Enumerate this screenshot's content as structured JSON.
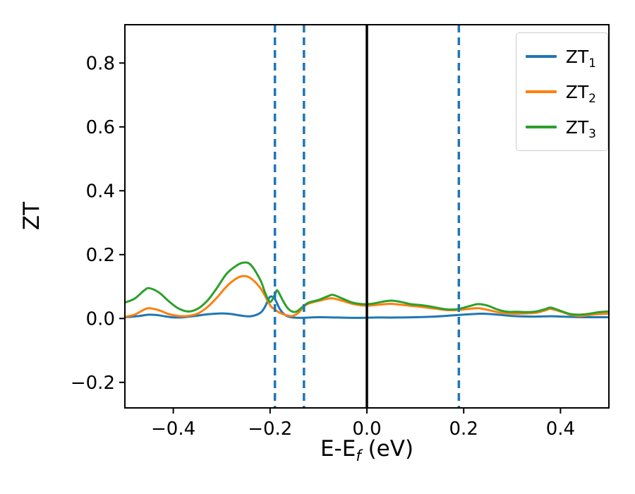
{
  "chart_data": {
    "type": "line",
    "title": "",
    "xlabel": "E-E_f (eV)",
    "xlabel_parts": {
      "main": "E-E",
      "sub": "f",
      "suffix": " (eV)"
    },
    "ylabel": "ZT",
    "xlim": [
      -0.5,
      0.5
    ],
    "ylim": [
      -0.28,
      0.92
    ],
    "grid": false,
    "legend_position": "upper right",
    "x_ticks": [
      {
        "value": -0.4,
        "label": "−0.4"
      },
      {
        "value": -0.2,
        "label": "−0.2"
      },
      {
        "value": 0.0,
        "label": "0.0"
      },
      {
        "value": 0.2,
        "label": "0.2"
      },
      {
        "value": 0.4,
        "label": "0.4"
      }
    ],
    "y_ticks": [
      {
        "value": -0.2,
        "label": "−0.2"
      },
      {
        "value": 0.0,
        "label": "0.0"
      },
      {
        "value": 0.2,
        "label": "0.2"
      },
      {
        "value": 0.4,
        "label": "0.4"
      },
      {
        "value": 0.6,
        "label": "0.6"
      },
      {
        "value": 0.8,
        "label": "0.8"
      }
    ],
    "vlines": [
      {
        "x": 0.0,
        "color": "#000000",
        "style": "solid",
        "width": 3.5
      },
      {
        "x": -0.19,
        "color": "#1f77b4",
        "style": "dashed",
        "width": 3.5
      },
      {
        "x": -0.13,
        "color": "#1f77b4",
        "style": "dashed",
        "width": 3.5
      },
      {
        "x": 0.19,
        "color": "#1f77b4",
        "style": "dashed",
        "width": 3.5
      }
    ],
    "series": [
      {
        "name": "ZT_1",
        "label_base": "ZT",
        "label_sub": "1",
        "color": "#1f77b4",
        "points": [
          [
            -0.5,
            0.004
          ],
          [
            -0.47,
            0.008
          ],
          [
            -0.45,
            0.012
          ],
          [
            -0.43,
            0.01
          ],
          [
            -0.41,
            0.005
          ],
          [
            -0.39,
            0.003
          ],
          [
            -0.36,
            0.007
          ],
          [
            -0.33,
            0.013
          ],
          [
            -0.3,
            0.016
          ],
          [
            -0.28,
            0.014
          ],
          [
            -0.26,
            0.009
          ],
          [
            -0.24,
            0.007
          ],
          [
            -0.22,
            0.018
          ],
          [
            -0.21,
            0.038
          ],
          [
            -0.2,
            0.068
          ],
          [
            -0.19,
            0.06
          ],
          [
            -0.18,
            0.03
          ],
          [
            -0.17,
            0.012
          ],
          [
            -0.16,
            0.005
          ],
          [
            -0.14,
            0.002
          ],
          [
            -0.1,
            0.004
          ],
          [
            -0.06,
            0.003
          ],
          [
            -0.02,
            0.002
          ],
          [
            0.02,
            0.003
          ],
          [
            0.06,
            0.003
          ],
          [
            0.1,
            0.004
          ],
          [
            0.14,
            0.006
          ],
          [
            0.18,
            0.01
          ],
          [
            0.21,
            0.013
          ],
          [
            0.24,
            0.015
          ],
          [
            0.27,
            0.012
          ],
          [
            0.3,
            0.008
          ],
          [
            0.34,
            0.006
          ],
          [
            0.38,
            0.007
          ],
          [
            0.42,
            0.005
          ],
          [
            0.46,
            0.004
          ],
          [
            0.5,
            0.004
          ]
        ]
      },
      {
        "name": "ZT_2",
        "label_base": "ZT",
        "label_sub": "2",
        "color": "#ff7f0e",
        "points": [
          [
            -0.5,
            0.005
          ],
          [
            -0.48,
            0.012
          ],
          [
            -0.46,
            0.028
          ],
          [
            -0.45,
            0.032
          ],
          [
            -0.43,
            0.026
          ],
          [
            -0.41,
            0.014
          ],
          [
            -0.39,
            0.008
          ],
          [
            -0.37,
            0.008
          ],
          [
            -0.35,
            0.015
          ],
          [
            -0.33,
            0.035
          ],
          [
            -0.31,
            0.065
          ],
          [
            -0.29,
            0.1
          ],
          [
            -0.27,
            0.125
          ],
          [
            -0.255,
            0.133
          ],
          [
            -0.24,
            0.126
          ],
          [
            -0.22,
            0.095
          ],
          [
            -0.2,
            0.042
          ],
          [
            -0.19,
            0.028
          ],
          [
            -0.18,
            0.018
          ],
          [
            -0.16,
            0.008
          ],
          [
            -0.15,
            0.01
          ],
          [
            -0.14,
            0.02
          ],
          [
            -0.13,
            0.038
          ],
          [
            -0.12,
            0.047
          ],
          [
            -0.1,
            0.055
          ],
          [
            -0.08,
            0.062
          ],
          [
            -0.07,
            0.063
          ],
          [
            -0.05,
            0.055
          ],
          [
            -0.03,
            0.046
          ],
          [
            -0.01,
            0.041
          ],
          [
            0.01,
            0.041
          ],
          [
            0.03,
            0.044
          ],
          [
            0.05,
            0.046
          ],
          [
            0.07,
            0.043
          ],
          [
            0.09,
            0.04
          ],
          [
            0.11,
            0.037
          ],
          [
            0.13,
            0.033
          ],
          [
            0.15,
            0.029
          ],
          [
            0.17,
            0.026
          ],
          [
            0.19,
            0.027
          ],
          [
            0.21,
            0.03
          ],
          [
            0.23,
            0.032
          ],
          [
            0.25,
            0.027
          ],
          [
            0.27,
            0.02
          ],
          [
            0.29,
            0.016
          ],
          [
            0.31,
            0.015
          ],
          [
            0.33,
            0.016
          ],
          [
            0.35,
            0.018
          ],
          [
            0.37,
            0.026
          ],
          [
            0.38,
            0.03
          ],
          [
            0.4,
            0.022
          ],
          [
            0.42,
            0.012
          ],
          [
            0.44,
            0.008
          ],
          [
            0.46,
            0.011
          ],
          [
            0.48,
            0.014
          ],
          [
            0.5,
            0.015
          ]
        ]
      },
      {
        "name": "ZT_3",
        "label_base": "ZT",
        "label_sub": "3",
        "color": "#2ca02c",
        "points": [
          [
            -0.5,
            0.05
          ],
          [
            -0.48,
            0.062
          ],
          [
            -0.46,
            0.088
          ],
          [
            -0.45,
            0.095
          ],
          [
            -0.43,
            0.082
          ],
          [
            -0.41,
            0.055
          ],
          [
            -0.39,
            0.032
          ],
          [
            -0.37,
            0.022
          ],
          [
            -0.35,
            0.03
          ],
          [
            -0.33,
            0.055
          ],
          [
            -0.31,
            0.095
          ],
          [
            -0.29,
            0.14
          ],
          [
            -0.27,
            0.165
          ],
          [
            -0.255,
            0.175
          ],
          [
            -0.24,
            0.168
          ],
          [
            -0.22,
            0.12
          ],
          [
            -0.21,
            0.08
          ],
          [
            -0.2,
            0.052
          ],
          [
            -0.19,
            0.075
          ],
          [
            -0.185,
            0.088
          ],
          [
            -0.175,
            0.06
          ],
          [
            -0.165,
            0.035
          ],
          [
            -0.155,
            0.022
          ],
          [
            -0.145,
            0.022
          ],
          [
            -0.13,
            0.04
          ],
          [
            -0.12,
            0.05
          ],
          [
            -0.1,
            0.058
          ],
          [
            -0.08,
            0.07
          ],
          [
            -0.07,
            0.074
          ],
          [
            -0.05,
            0.062
          ],
          [
            -0.03,
            0.05
          ],
          [
            -0.01,
            0.045
          ],
          [
            0.01,
            0.046
          ],
          [
            0.03,
            0.052
          ],
          [
            0.05,
            0.056
          ],
          [
            0.07,
            0.052
          ],
          [
            0.09,
            0.045
          ],
          [
            0.11,
            0.042
          ],
          [
            0.13,
            0.038
          ],
          [
            0.15,
            0.032
          ],
          [
            0.17,
            0.028
          ],
          [
            0.19,
            0.03
          ],
          [
            0.21,
            0.038
          ],
          [
            0.23,
            0.045
          ],
          [
            0.25,
            0.04
          ],
          [
            0.27,
            0.028
          ],
          [
            0.29,
            0.021
          ],
          [
            0.31,
            0.021
          ],
          [
            0.33,
            0.02
          ],
          [
            0.35,
            0.022
          ],
          [
            0.37,
            0.03
          ],
          [
            0.38,
            0.034
          ],
          [
            0.4,
            0.024
          ],
          [
            0.42,
            0.014
          ],
          [
            0.44,
            0.012
          ],
          [
            0.46,
            0.015
          ],
          [
            0.48,
            0.02
          ],
          [
            0.5,
            0.022
          ]
        ]
      }
    ]
  }
}
